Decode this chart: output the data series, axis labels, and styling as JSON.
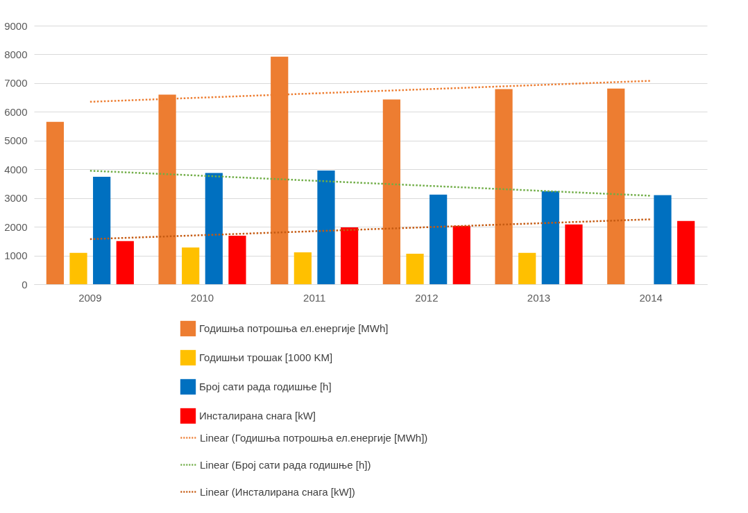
{
  "chart_data": {
    "type": "bar",
    "categories": [
      "2009",
      "2010",
      "2011",
      "2012",
      "2013",
      "2014"
    ],
    "series": [
      {
        "name": "Годишња  потрошња ел.енергије [MWh]",
        "color": "#ed7d31",
        "values": [
          5650,
          6600,
          7920,
          6430,
          6790,
          6810
        ]
      },
      {
        "name": "Годишњи трошак  [1000 KM]",
        "color": "#ffc000",
        "values": [
          1090,
          1280,
          1110,
          1060,
          1090,
          null
        ]
      },
      {
        "name": "Број сати рада годишње  [h]",
        "color": "#0070c0",
        "values": [
          3740,
          3870,
          3960,
          3120,
          3240,
          3100
        ]
      },
      {
        "name": "Инсталирана снага [kW]",
        "color": "#ff0000",
        "values": [
          1500,
          1690,
          1980,
          2030,
          2080,
          2200
        ]
      },
      {
        "name": "Linear (Годишња  потрошња ел.енергије [MWh])",
        "type": "line",
        "line_style": "dotted",
        "color": "#ed7d31",
        "values": [
          6350,
          6496,
          6642,
          6788,
          6934,
          7080
        ]
      },
      {
        "name": "Linear (Број сати рада годишње  [h])",
        "type": "line",
        "line_style": "dotted",
        "color": "#70ad47",
        "values": [
          3950,
          3776,
          3602,
          3428,
          3254,
          3080
        ]
      },
      {
        "name": "Linear (Инсталирана снага [kW])",
        "type": "line",
        "line_style": "dotted",
        "color": "#c55a11",
        "values": [
          1570,
          1708,
          1846,
          1984,
          2122,
          2260
        ]
      }
    ],
    "ylim": [
      0,
      9000
    ],
    "yticks": [
      0,
      1000,
      2000,
      3000,
      4000,
      5000,
      6000,
      7000,
      8000,
      9000
    ],
    "grid": "y",
    "legend": "bottom"
  }
}
